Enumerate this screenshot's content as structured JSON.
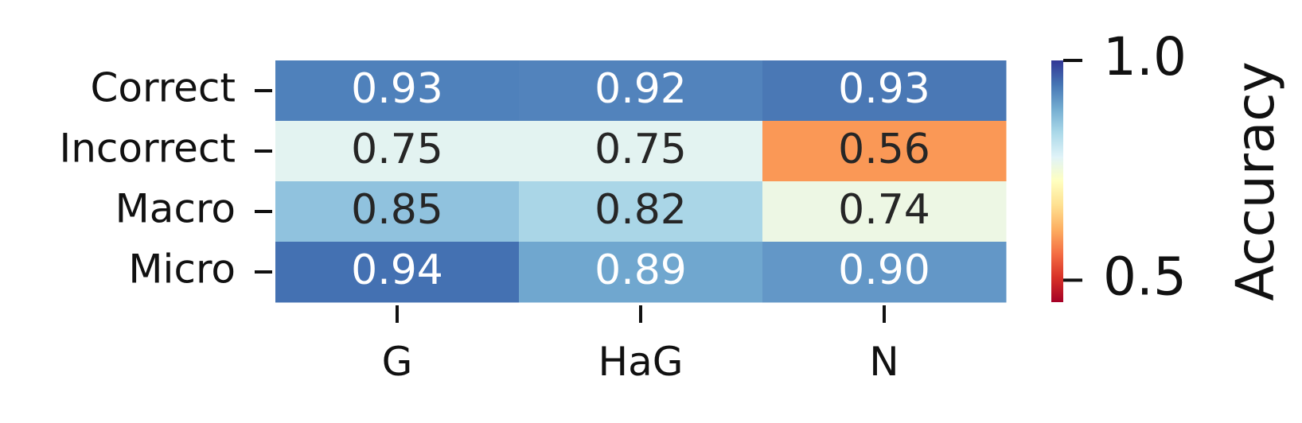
{
  "chart_data": {
    "type": "heatmap",
    "rows": [
      "Correct",
      "Incorrect",
      "Macro",
      "Micro"
    ],
    "columns": [
      "G",
      "HaG",
      "N"
    ],
    "values": [
      [
        0.93,
        0.92,
        0.93
      ],
      [
        0.75,
        0.75,
        0.56
      ],
      [
        0.85,
        0.82,
        0.74
      ],
      [
        0.94,
        0.89,
        0.9
      ]
    ],
    "cell_labels": [
      [
        "0.93",
        "0.92",
        "0.93"
      ],
      [
        "0.75",
        "0.75",
        "0.56"
      ],
      [
        "0.85",
        "0.82",
        "0.74"
      ],
      [
        "0.94",
        "0.89",
        "0.90"
      ]
    ],
    "cell_colors": [
      [
        "#4f81bb",
        "#5283bc",
        "#4a78b5"
      ],
      [
        "#e3f3f1",
        "#e3f3f1",
        "#fa9856"
      ],
      [
        "#90c2de",
        "#aad6e7",
        "#edf7e4"
      ],
      [
        "#4471b2",
        "#70a7cf",
        "#6397c7"
      ]
    ],
    "colorbar": {
      "label": "Accuracy",
      "range": [
        0.45,
        1.0
      ],
      "ticks": [
        0.5,
        1.0
      ],
      "tick_labels": [
        "0.5",
        "1.0"
      ],
      "colormap": "RdYlBu",
      "colors": [
        "#a50026",
        "#d73027",
        "#f46d43",
        "#fdae61",
        "#fee090",
        "#ffffbf",
        "#e0f3f8",
        "#abd9e9",
        "#74add1",
        "#4575b4",
        "#313695"
      ]
    }
  }
}
